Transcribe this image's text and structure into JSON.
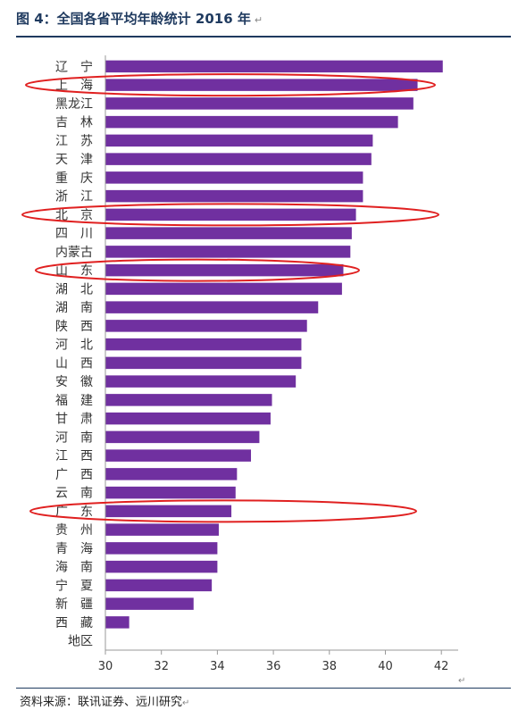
{
  "title": "图 4：全国各省平均年龄统计  2016 年",
  "title_mark": "↵",
  "source": "资料来源：联讯证券、远川研究",
  "source_mark": "↵",
  "trailing_mark": "↵",
  "colors": {
    "bar": "#7030a0",
    "highlight": "#e02020",
    "axis": "#999999"
  },
  "chart_data": {
    "type": "bar",
    "orientation": "horizontal",
    "title": "图 4：全国各省平均年龄统计  2016 年",
    "xlabel": "",
    "ylabel": "",
    "xlim": [
      30,
      42.6
    ],
    "xticks": [
      30,
      32,
      34,
      36,
      38,
      40,
      42
    ],
    "grid": false,
    "categories": [
      "辽　宁",
      "上　海",
      "黑龙江",
      "吉　林",
      "江　苏",
      "天　津",
      "重　庆",
      "浙　江",
      "北　京",
      "四　川",
      "内蒙古",
      "山　东",
      "湖　北",
      "湖　南",
      "陕　西",
      "河　北",
      "山　西",
      "安　徽",
      "福　建",
      "甘　肃",
      "河　南",
      "江　西",
      "广　西",
      "云　南",
      "广　东",
      "贵　州",
      "青　海",
      "海　南",
      "宁　夏",
      "新　疆",
      "西　藏",
      "地区"
    ],
    "values": [
      42.05,
      41.15,
      41.0,
      40.45,
      39.55,
      39.5,
      39.2,
      39.2,
      38.95,
      38.8,
      38.75,
      38.5,
      38.45,
      37.6,
      37.2,
      37.0,
      37.0,
      36.8,
      35.95,
      35.9,
      35.5,
      35.2,
      34.7,
      34.65,
      34.5,
      34.05,
      34.0,
      34.0,
      33.8,
      33.15,
      30.85,
      null
    ],
    "highlighted": [
      "上　海",
      "北　京",
      "山　东",
      "广　东"
    ]
  }
}
